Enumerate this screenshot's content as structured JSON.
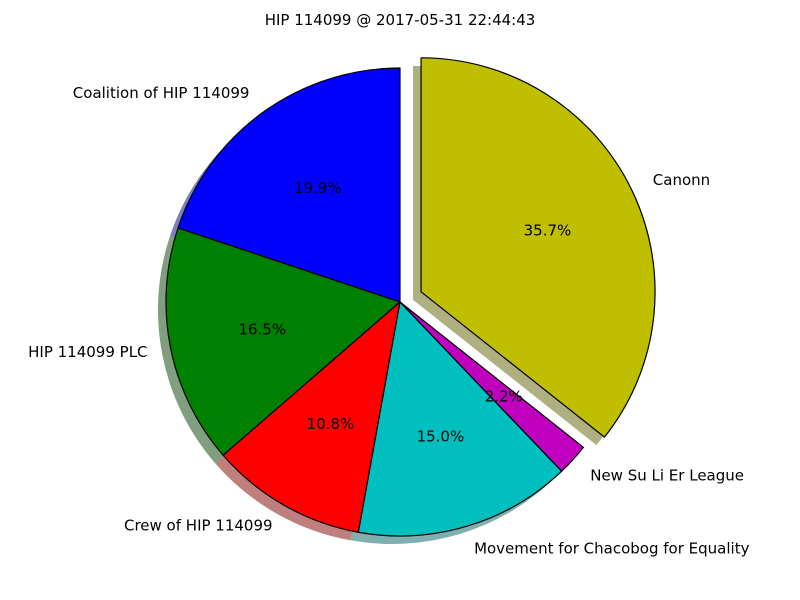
{
  "chart_data": {
    "type": "pie",
    "title": "HIP 114099 @ 2017-05-31 22:44:43",
    "start_angle_deg": 90,
    "direction": "counterclockwise",
    "shadow": true,
    "slices": [
      {
        "label": "Coalition of HIP 114099",
        "value": 19.9,
        "pct_label": "19.9%",
        "color": "#0000ff",
        "exploded": false
      },
      {
        "label": "HIP 114099 PLC",
        "value": 16.5,
        "pct_label": "16.5%",
        "color": "#008000",
        "exploded": false
      },
      {
        "label": "Crew of HIP 114099",
        "value": 10.8,
        "pct_label": "10.8%",
        "color": "#ff0000",
        "exploded": false
      },
      {
        "label": "Movement for Chacobog for Equality",
        "value": 15.0,
        "pct_label": "15.0%",
        "color": "#00bfbf",
        "exploded": false
      },
      {
        "label": "New Su Li Er League",
        "value": 2.2,
        "pct_label": "2.2%",
        "color": "#bf00bf",
        "exploded": false
      },
      {
        "label": "Canonn",
        "value": 35.7,
        "pct_label": "35.7%",
        "color": "#bfbf00",
        "exploded": true
      }
    ]
  }
}
